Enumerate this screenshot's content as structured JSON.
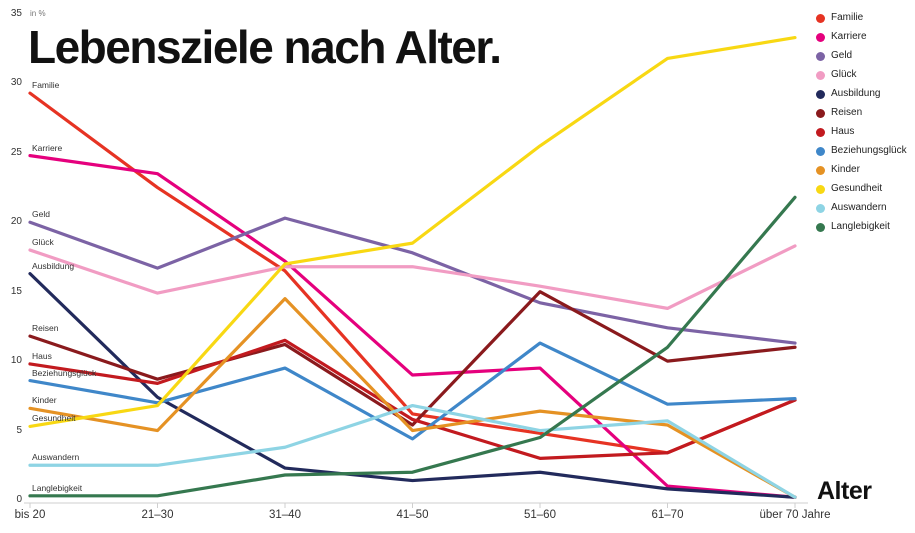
{
  "chart_data": {
    "type": "line",
    "title": "Lebensziele nach Alter.",
    "unit_label": "in %",
    "xlabel": "Alter",
    "ylabel": "",
    "ylim": [
      0,
      35
    ],
    "yticks": [
      0,
      5,
      10,
      15,
      20,
      25,
      30,
      35
    ],
    "grid": false,
    "legend_position": "top-right",
    "categories": [
      "bis 20",
      "21–30",
      "31–40",
      "41–50",
      "51–60",
      "61–70",
      "über 70 Jahre"
    ],
    "series": [
      {
        "name": "Familie",
        "color": "#e63323",
        "values": [
          29.3,
          22.5,
          16.5,
          6.2,
          4.8,
          3.4,
          7.2
        ]
      },
      {
        "name": "Karriere",
        "color": "#e5007d",
        "values": [
          24.8,
          23.5,
          17.2,
          9.0,
          9.5,
          1.0,
          0.2
        ]
      },
      {
        "name": "Geld",
        "color": "#7c63a5",
        "values": [
          20.0,
          16.7,
          20.3,
          17.8,
          14.2,
          12.4,
          11.3
        ]
      },
      {
        "name": "Glück",
        "color": "#f19cc3",
        "values": [
          18.0,
          14.9,
          16.8,
          16.8,
          15.4,
          13.8,
          18.3
        ]
      },
      {
        "name": "Ausbildung",
        "color": "#222a5c",
        "values": [
          16.3,
          7.4,
          2.3,
          1.4,
          2.0,
          0.8,
          0.2
        ]
      },
      {
        "name": "Reisen",
        "color": "#8a1a1d",
        "values": [
          11.8,
          8.7,
          11.2,
          5.4,
          15.0,
          10.0,
          11.0
        ]
      },
      {
        "name": "Haus",
        "color": "#c21a1f",
        "values": [
          9.8,
          8.4,
          11.5,
          5.8,
          3.0,
          3.4,
          7.2
        ]
      },
      {
        "name": "Beziehungsglück",
        "color": "#3f87c9",
        "values": [
          8.6,
          7.0,
          9.5,
          4.4,
          11.3,
          6.9,
          7.3
        ]
      },
      {
        "name": "Kinder",
        "color": "#e59224",
        "values": [
          6.6,
          5.0,
          14.5,
          5.0,
          6.4,
          5.4,
          0.2
        ]
      },
      {
        "name": "Gesundheit",
        "color": "#f8d813",
        "values": [
          5.3,
          6.8,
          17.0,
          18.5,
          25.5,
          31.8,
          33.3
        ]
      },
      {
        "name": "Auswandern",
        "color": "#8ed4e4",
        "values": [
          2.5,
          2.5,
          3.8,
          6.8,
          5.0,
          5.7,
          0.2
        ]
      },
      {
        "name": "Langlebigkeit",
        "color": "#35784f",
        "values": [
          0.3,
          0.3,
          1.8,
          2.0,
          4.5,
          11.0,
          21.8
        ]
      }
    ]
  }
}
